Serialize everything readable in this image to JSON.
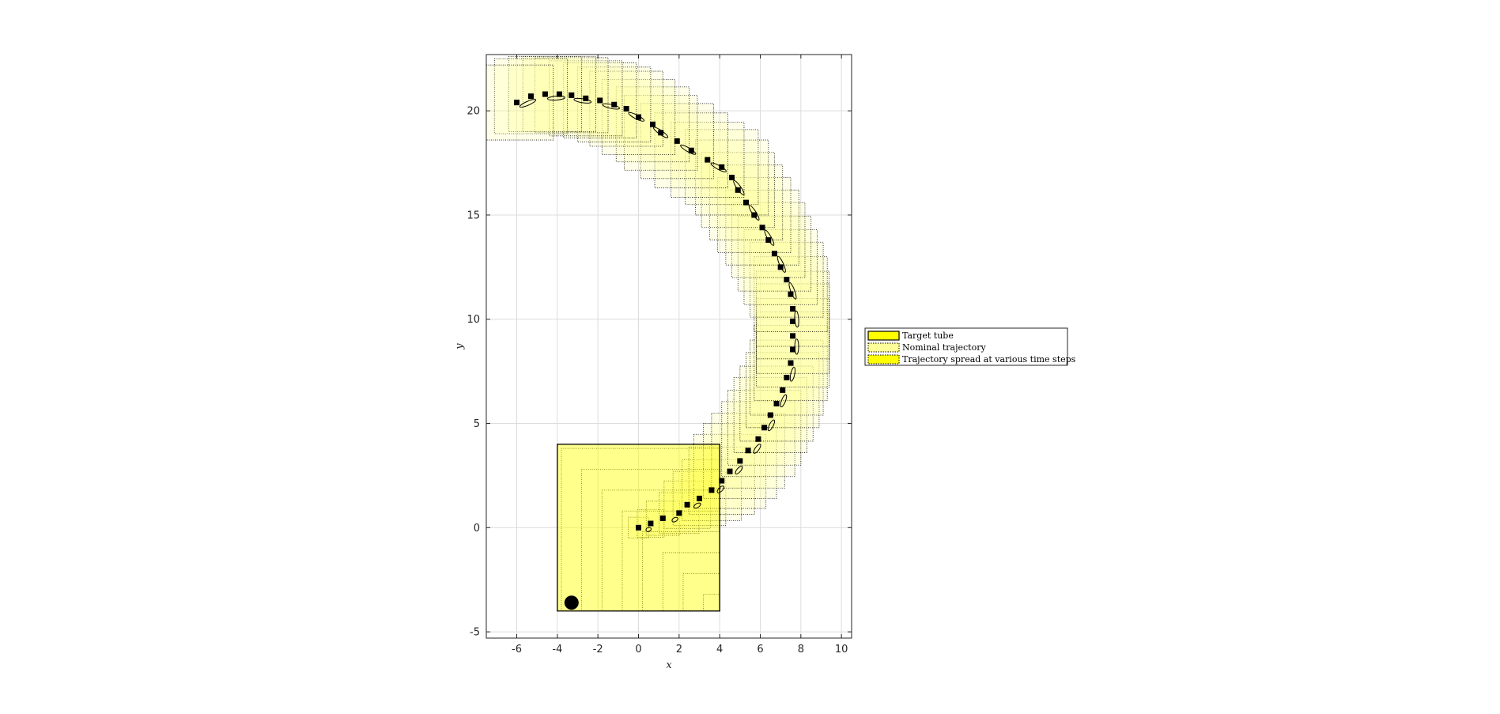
{
  "chart_data": {
    "type": "scatter",
    "xlabel": "x",
    "ylabel": "y",
    "xlim": [
      -7.5,
      10.5
    ],
    "ylim": [
      -5.3,
      22.7
    ],
    "xticks": [
      -6,
      -4,
      -2,
      0,
      2,
      4,
      6,
      8,
      10
    ],
    "yticks": [
      -5,
      0,
      5,
      10,
      15,
      20
    ],
    "grid": true,
    "legend_position": "outside-right",
    "legend": [
      "Target tube",
      "Nominal trajectory",
      "Trajectory spread at various time steps"
    ],
    "colors": {
      "tube_fill": "#ffff00",
      "spread_fill": "#ffff99",
      "marker": "#000000",
      "grid": "#dcdcdc"
    },
    "target_tube": {
      "x_range": [
        -4,
        4
      ],
      "y_range": [
        -4,
        4
      ]
    },
    "initial_point": [
      -3.3,
      -3.6
    ],
    "nominal_trajectory": {
      "x": [
        0,
        0.6,
        1.2,
        2.0,
        2.4,
        3.0,
        3.6,
        4.1,
        4.5,
        5.0,
        5.4,
        5.9,
        6.2,
        6.5,
        6.8,
        7.1,
        7.3,
        7.5,
        7.6,
        7.6,
        7.6,
        7.6,
        7.5,
        7.3,
        7.0,
        6.7,
        6.4,
        6.1,
        5.7,
        5.3,
        4.9,
        4.6,
        4.1,
        3.4,
        2.6,
        1.9,
        1.1,
        0.7,
        0,
        -0.6,
        -1.2,
        -1.9,
        -2.6,
        -3.3,
        -3.9,
        -4.6,
        -5.3,
        -6.0
      ],
      "y": [
        0,
        0.2,
        0.45,
        0.7,
        1.1,
        1.4,
        1.8,
        2.25,
        2.7,
        3.2,
        3.7,
        4.25,
        4.8,
        5.4,
        5.95,
        6.6,
        7.2,
        7.9,
        8.55,
        9.2,
        9.9,
        10.5,
        11.2,
        11.9,
        12.5,
        13.15,
        13.8,
        14.4,
        15.0,
        15.6,
        16.2,
        16.8,
        17.3,
        17.65,
        18.1,
        18.55,
        18.95,
        19.35,
        19.7,
        20.1,
        20.3,
        20.5,
        20.6,
        20.75,
        20.8,
        20.8,
        20.7,
        20.4
      ]
    }
  }
}
